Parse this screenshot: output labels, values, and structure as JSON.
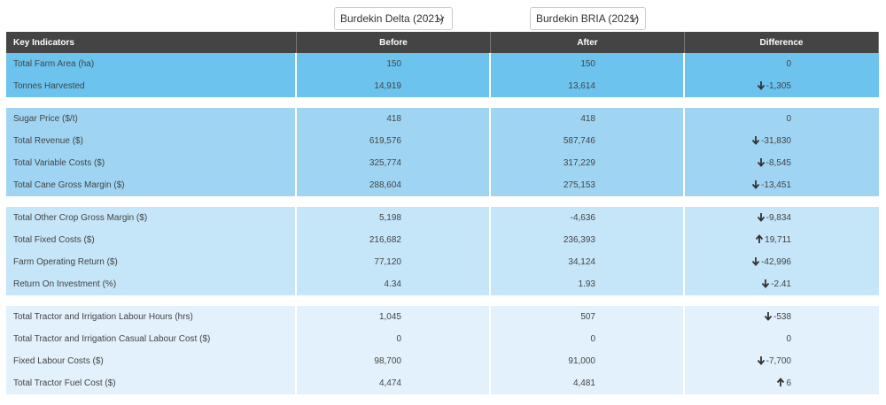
{
  "selectors": {
    "before": "Burdekin Delta (2021)",
    "after": "Burdekin BRIA (2021)"
  },
  "headers": [
    "Key Indicators",
    "Before",
    "After",
    "Difference"
  ],
  "groups": [
    {
      "color": "#6cc3ee",
      "rows": [
        {
          "label": "Total Farm Area (ha)",
          "before": "150",
          "after": "150",
          "diff": "0",
          "dir": ""
        },
        {
          "label": "Tonnes Harvested",
          "before": "14,919",
          "after": "13,614",
          "diff": "-1,305",
          "dir": "down"
        }
      ]
    },
    {
      "color": "#9fd5f3",
      "rows": [
        {
          "label": "Sugar Price ($/t)",
          "before": "418",
          "after": "418",
          "diff": "0",
          "dir": ""
        },
        {
          "label": "Total Revenue ($)",
          "before": "619,576",
          "after": "587,746",
          "diff": "-31,830",
          "dir": "down"
        },
        {
          "label": "Total Variable Costs ($)",
          "before": "325,774",
          "after": "317,229",
          "diff": "-8,545",
          "dir": "down"
        },
        {
          "label": "Total Cane Gross Margin ($)",
          "before": "288,604",
          "after": "275,153",
          "diff": "-13,451",
          "dir": "down"
        }
      ]
    },
    {
      "color": "#c5e5f8",
      "rows": [
        {
          "label": "Total Other Crop Gross Margin ($)",
          "before": "5,198",
          "after": "-4,636",
          "diff": "-9,834",
          "dir": "down"
        },
        {
          "label": "Total Fixed Costs ($)",
          "before": "216,682",
          "after": "236,393",
          "diff": "19,711",
          "dir": "up"
        },
        {
          "label": "Farm Operating Return ($)",
          "before": "77,120",
          "after": "34,124",
          "diff": "-42,996",
          "dir": "down"
        },
        {
          "label": "Return On Investment (%)",
          "before": "4.34",
          "after": "1.93",
          "diff": "-2.41",
          "dir": "down"
        }
      ]
    },
    {
      "color": "#e2f1fb",
      "rows": [
        {
          "label": "Total Tractor and Irrigation Labour Hours (hrs)",
          "before": "1,045",
          "after": "507",
          "diff": "-538",
          "dir": "down"
        },
        {
          "label": "Total Tractor and Irrigation Casual Labour Cost ($)",
          "before": "0",
          "after": "0",
          "diff": "0",
          "dir": ""
        },
        {
          "label": "Fixed Labour Costs ($)",
          "before": "98,700",
          "after": "91,000",
          "diff": "-7,700",
          "dir": "down"
        },
        {
          "label": "Total Tractor Fuel Cost ($)",
          "before": "4,474",
          "after": "4,481",
          "diff": "6",
          "dir": "up"
        }
      ]
    }
  ]
}
